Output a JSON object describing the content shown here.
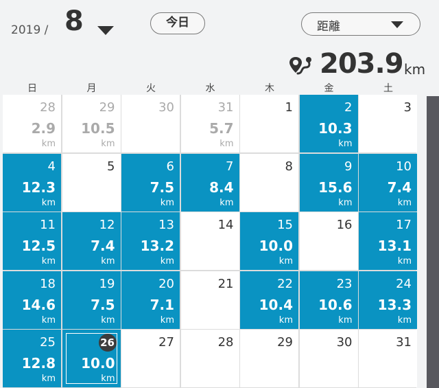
{
  "header": {
    "year": "2019 /",
    "month": "8",
    "today_label": "今日",
    "metric_label": "距離",
    "total_value": "203.9",
    "total_unit": "km",
    "route_icon": "route-pin-icon"
  },
  "colors": {
    "active": "#0a93c2",
    "today_badge": "#3c3c3c",
    "background": "#f2f3f4"
  },
  "weekdays": [
    "日",
    "月",
    "火",
    "水",
    "木",
    "金",
    "土"
  ],
  "weeks": [
    [
      {
        "day": "28",
        "dist": "2.9",
        "unit": "km",
        "state": "outside"
      },
      {
        "day": "29",
        "dist": "10.5",
        "unit": "km",
        "state": "outside"
      },
      {
        "day": "30",
        "dist": "",
        "unit": "",
        "state": "outside"
      },
      {
        "day": "31",
        "dist": "5.7",
        "unit": "km",
        "state": "outside"
      },
      {
        "day": "1",
        "dist": "",
        "unit": "",
        "state": "blank"
      },
      {
        "day": "2",
        "dist": "10.3",
        "unit": "km",
        "state": "active"
      },
      {
        "day": "3",
        "dist": "",
        "unit": "",
        "state": "blank"
      }
    ],
    [
      {
        "day": "4",
        "dist": "12.3",
        "unit": "km",
        "state": "active"
      },
      {
        "day": "5",
        "dist": "",
        "unit": "",
        "state": "blank"
      },
      {
        "day": "6",
        "dist": "7.5",
        "unit": "km",
        "state": "active"
      },
      {
        "day": "7",
        "dist": "8.4",
        "unit": "km",
        "state": "active"
      },
      {
        "day": "8",
        "dist": "",
        "unit": "",
        "state": "blank"
      },
      {
        "day": "9",
        "dist": "15.6",
        "unit": "km",
        "state": "active"
      },
      {
        "day": "10",
        "dist": "7.4",
        "unit": "km",
        "state": "active"
      }
    ],
    [
      {
        "day": "11",
        "dist": "12.5",
        "unit": "km",
        "state": "active"
      },
      {
        "day": "12",
        "dist": "7.4",
        "unit": "km",
        "state": "active"
      },
      {
        "day": "13",
        "dist": "13.2",
        "unit": "km",
        "state": "active"
      },
      {
        "day": "14",
        "dist": "",
        "unit": "",
        "state": "blank"
      },
      {
        "day": "15",
        "dist": "10.0",
        "unit": "km",
        "state": "active"
      },
      {
        "day": "16",
        "dist": "",
        "unit": "",
        "state": "blank"
      },
      {
        "day": "17",
        "dist": "13.1",
        "unit": "km",
        "state": "active"
      }
    ],
    [
      {
        "day": "18",
        "dist": "14.6",
        "unit": "km",
        "state": "active"
      },
      {
        "day": "19",
        "dist": "7.5",
        "unit": "km",
        "state": "active"
      },
      {
        "day": "20",
        "dist": "7.1",
        "unit": "km",
        "state": "active"
      },
      {
        "day": "21",
        "dist": "",
        "unit": "",
        "state": "blank"
      },
      {
        "day": "22",
        "dist": "10.4",
        "unit": "km",
        "state": "active"
      },
      {
        "day": "23",
        "dist": "10.6",
        "unit": "km",
        "state": "active"
      },
      {
        "day": "24",
        "dist": "13.3",
        "unit": "km",
        "state": "active"
      }
    ],
    [
      {
        "day": "25",
        "dist": "12.8",
        "unit": "km",
        "state": "active"
      },
      {
        "day": "26",
        "dist": "10.0",
        "unit": "km",
        "state": "active",
        "today": true,
        "selected": true
      },
      {
        "day": "27",
        "dist": "",
        "unit": "",
        "state": "blank"
      },
      {
        "day": "28",
        "dist": "",
        "unit": "",
        "state": "blank"
      },
      {
        "day": "29",
        "dist": "",
        "unit": "",
        "state": "blank"
      },
      {
        "day": "30",
        "dist": "",
        "unit": "",
        "state": "blank"
      },
      {
        "day": "31",
        "dist": "",
        "unit": "",
        "state": "blank"
      }
    ]
  ]
}
